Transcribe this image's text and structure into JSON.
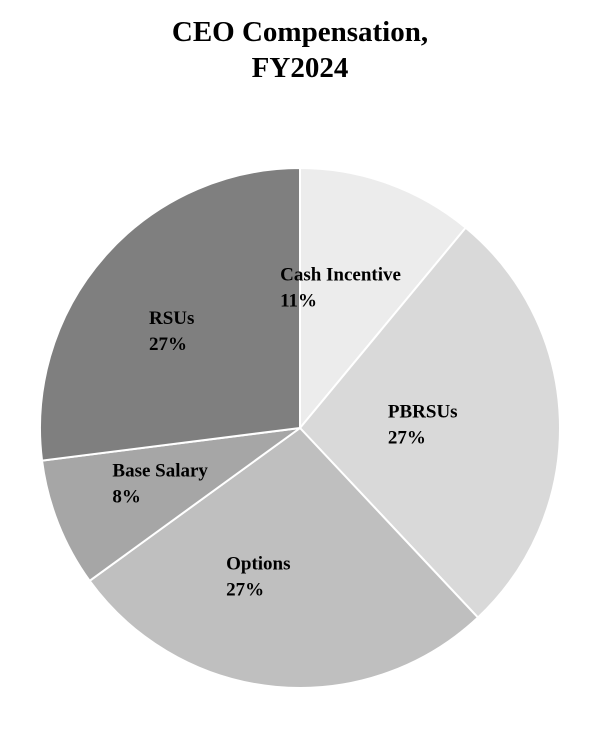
{
  "chart_data": {
    "type": "pie",
    "title_lines": [
      "CEO Compensation,",
      "FY2024"
    ],
    "slices": [
      {
        "label": "Cash Incentive",
        "value": 11,
        "value_label": "11%",
        "color": "#ececec"
      },
      {
        "label": "PBRSUs",
        "value": 27,
        "value_label": "27%",
        "color": "#d9d9d9"
      },
      {
        "label": "Options",
        "value": 27,
        "value_label": "27%",
        "color": "#bfbfbf"
      },
      {
        "label": "Base Salary",
        "value": 8,
        "value_label": "8%",
        "color": "#a6a6a6"
      },
      {
        "label": "RSUs",
        "value": 27,
        "value_label": "27%",
        "color": "#7f7f7f"
      }
    ],
    "start": "12 o'clock",
    "direction": "clockwise",
    "slice_border_color": "#ffffff"
  }
}
